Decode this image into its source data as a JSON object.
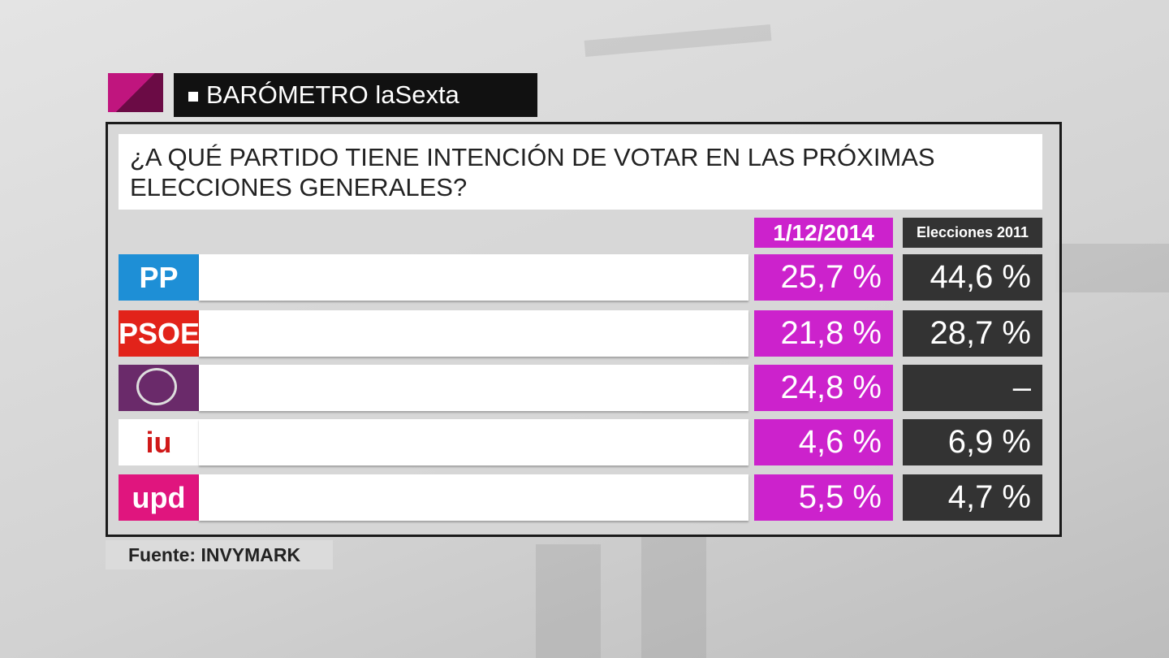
{
  "header": {
    "title": "BARÓMETRO laSexta"
  },
  "question": "¿A QUÉ PARTIDO TIENE INTENCIÓN DE VOTAR EN LAS PRÓXIMAS ELECCIONES GENERALES?",
  "table": {
    "columns": [
      "1/12/2014",
      "Elecciones 2011"
    ],
    "rows": [
      {
        "logo": "PP",
        "poll": "25,7 %",
        "result_2011": "44,6 %"
      },
      {
        "logo": "PSOE",
        "poll": "21,8 %",
        "result_2011": "28,7 %"
      },
      {
        "poll": "24,8 %",
        "result_2011": "–"
      },
      {
        "logo": "iu",
        "poll": "4,6 %",
        "result_2011": "6,9 %"
      },
      {
        "logo": "upd",
        "poll": "5,5 %",
        "result_2011": "4,7 %"
      }
    ]
  },
  "footer": {
    "source": "Fuente: INVYMARK"
  }
}
